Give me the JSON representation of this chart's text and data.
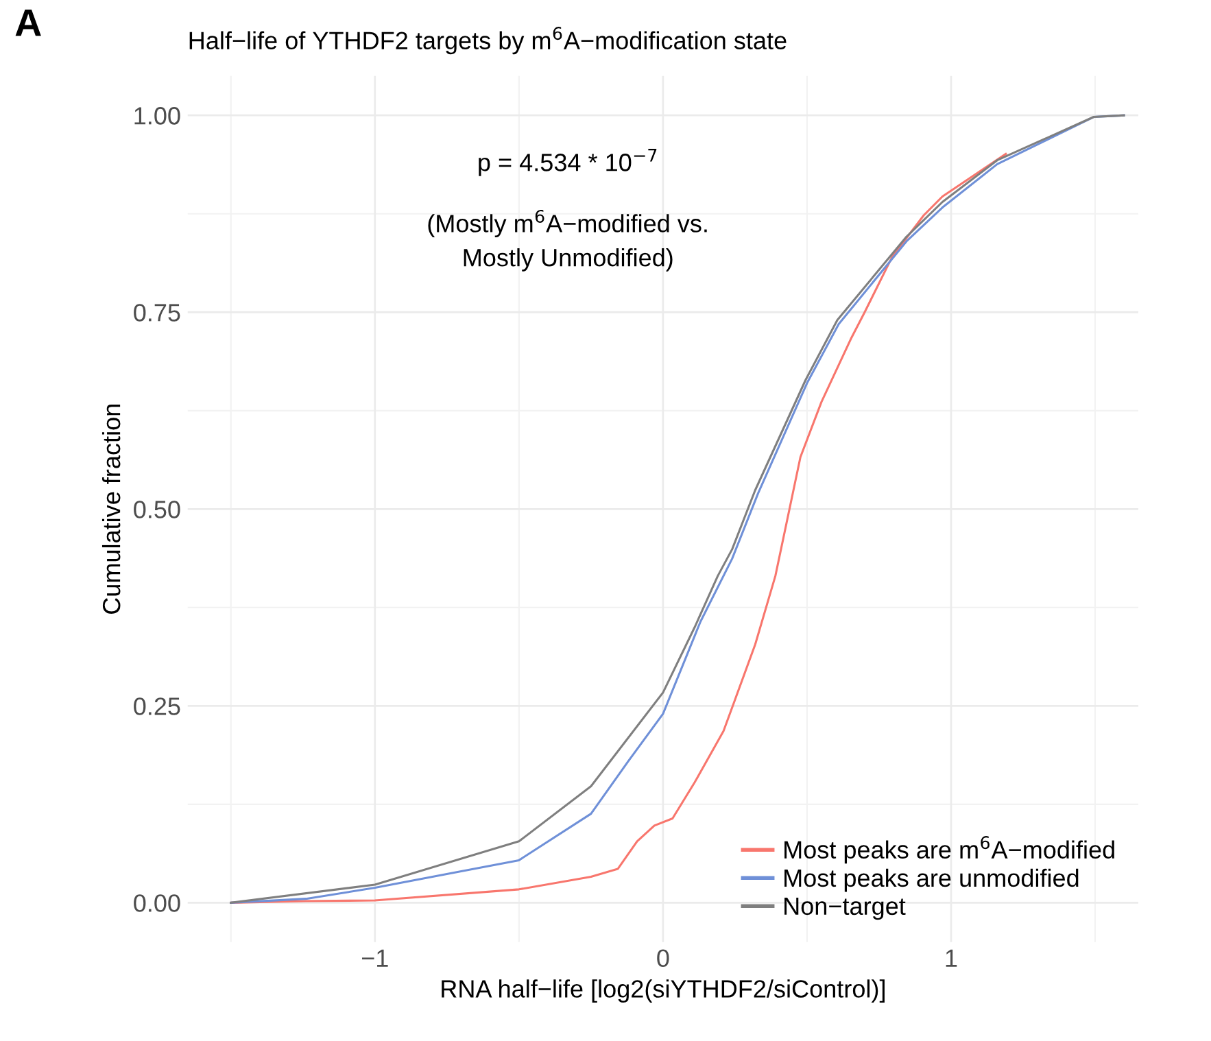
{
  "chart_data": {
    "type": "line",
    "title": "Half−life of YTHDF2 targets by m$^{6}$A−modification state",
    "xlabel": "RNA half−life [log2(siYTHDF2/siControl)]",
    "ylabel": "Cumulative fraction",
    "xlim": [
      -1.65,
      1.65
    ],
    "ylim": [
      -0.05,
      1.05
    ],
    "xticks": [
      {
        "value": -1,
        "label": "−1"
      },
      0,
      1
    ],
    "yticks": [
      {
        "value": 0,
        "label": "0.00"
      },
      {
        "value": 0.25,
        "label": "0.25"
      },
      {
        "value": 0.5,
        "label": "0.50"
      },
      {
        "value": 0.75,
        "label": "0.75"
      },
      {
        "value": 1,
        "label": "1.00"
      }
    ],
    "grid": true,
    "legend": "bottom right",
    "marker": "none",
    "line_style": "solid",
    "annotations": [
      "A",
      "p = 4.534 * 10$^{−7}$",
      "(Mostly m$^{6}$A−modified vs.\nMostly Unmodified)"
    ],
    "series": [
      {
        "name": "Most peaks are m$^{6}$A−modified",
        "color": "#f8766d",
        "x": [
          -1.5,
          -1.24,
          -1.0,
          -0.5,
          -0.25,
          -0.157,
          -0.09,
          -0.03,
          0.033,
          0.11,
          0.21,
          0.25,
          0.32,
          0.39,
          0.477,
          0.55,
          0.652,
          0.7,
          0.795,
          0.905,
          0.97,
          1.19
        ],
        "values": [
          0,
          0.002,
          0.003,
          0.017,
          0.033,
          0.043,
          0.078,
          0.098,
          0.107,
          0.153,
          0.218,
          0.258,
          0.328,
          0.415,
          0.566,
          0.636,
          0.716,
          0.75,
          0.82,
          0.873,
          0.897,
          0.951
        ]
      },
      {
        "name": "Most peaks are unmodified",
        "color": "#6f90d8",
        "x": [
          -1.5,
          -1.24,
          -1.0,
          -0.5,
          -0.25,
          -0.12,
          0,
          0.13,
          0.24,
          0.33,
          0.5,
          0.61,
          0.845,
          0.97,
          1.16,
          1.495,
          1.6
        ],
        "values": [
          0,
          0.005,
          0.019,
          0.054,
          0.113,
          0.18,
          0.24,
          0.357,
          0.437,
          0.52,
          0.66,
          0.735,
          0.84,
          0.883,
          0.938,
          0.998,
          1
        ]
      },
      {
        "name": "Non−target",
        "color": "#7f7f7f",
        "x": [
          -1.5,
          -1.0,
          -0.5,
          -0.25,
          0,
          0.11,
          0.19,
          0.24,
          0.32,
          0.495,
          0.605,
          0.843,
          0.97,
          1.16,
          1.495,
          1.6
        ],
        "values": [
          0,
          0.023,
          0.078,
          0.148,
          0.267,
          0.35,
          0.415,
          0.449,
          0.524,
          0.664,
          0.74,
          0.845,
          0.89,
          0.943,
          0.998,
          1
        ]
      }
    ]
  }
}
